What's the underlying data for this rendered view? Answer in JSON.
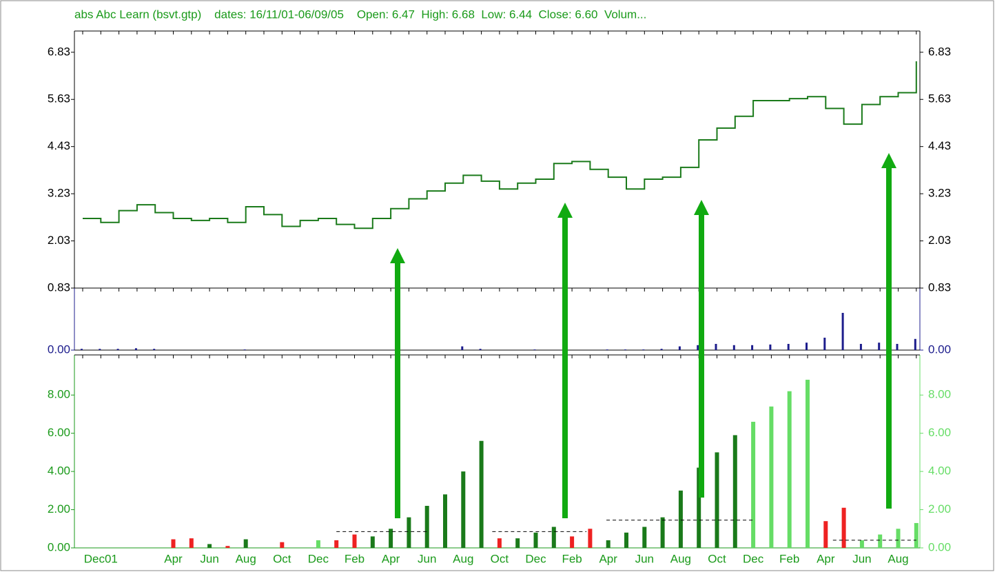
{
  "chart_data": [
    {
      "type": "line",
      "title": "abs Abc Learn (bsvt.gtp)    dates: 16/11/01-06/09/05    Open: 6.47  High: 6.68  Low: 6.44  Close: 6.60  Volum...",
      "color": "#1a7a1a",
      "values": [
        2.6,
        2.5,
        2.8,
        2.95,
        2.75,
        2.6,
        2.55,
        2.6,
        2.5,
        2.9,
        2.7,
        2.4,
        2.55,
        2.6,
        2.45,
        2.35,
        2.6,
        2.85,
        3.1,
        3.3,
        3.5,
        3.7,
        3.55,
        3.35,
        3.5,
        3.6,
        4.0,
        4.05,
        3.85,
        3.65,
        3.35,
        3.6,
        3.65,
        3.9,
        4.6,
        4.9,
        5.2,
        5.6,
        5.6,
        5.65,
        5.7,
        5.4,
        5.0,
        5.5,
        5.7,
        5.8,
        6.6
      ],
      "ylim": [
        0.83,
        7.37
      ],
      "yticks": [
        0.83,
        2.03,
        3.23,
        4.43,
        5.63,
        6.83
      ]
    },
    {
      "type": "bar",
      "color": "#1c1c8c",
      "values": [
        0.02,
        0.02,
        0.02,
        0.03,
        0.02,
        0,
        0,
        0,
        0,
        0.01,
        0,
        0,
        0,
        0,
        0,
        0,
        0,
        0,
        0,
        0,
        0,
        0.06,
        0.02,
        0,
        0,
        0.01,
        0,
        0,
        0,
        0.01,
        0.01,
        0.01,
        0.02,
        0.06,
        0.08,
        0.1,
        0.08,
        0.08,
        0.09,
        0.1,
        0.12,
        0.2,
        0.6,
        0.1,
        0.12,
        0.1,
        0.18
      ],
      "ylim": [
        0,
        1
      ],
      "yticks": [
        {
          "value": 0,
          "label": "0.00"
        }
      ]
    },
    {
      "type": "bar",
      "categories": [
        null,
        "Dec01",
        null,
        null,
        null,
        "Apr",
        null,
        "Jun",
        null,
        "Aug",
        null,
        "Oct",
        null,
        "Dec",
        null,
        "Feb",
        null,
        "Apr",
        null,
        "Jun",
        null,
        "Aug",
        null,
        "Oct",
        null,
        "Dec",
        null,
        "Feb",
        null,
        "Apr",
        null,
        "Jun",
        null,
        "Aug",
        null,
        "Oct",
        null,
        "Dec",
        null,
        "Feb",
        null,
        "Apr",
        null,
        "Jun",
        null,
        "Aug",
        null
      ],
      "values": [
        0,
        0,
        0,
        0,
        0,
        0.45,
        0.5,
        0.2,
        0.1,
        0.45,
        0,
        0.3,
        0,
        0.4,
        0.4,
        0.7,
        0.6,
        1.0,
        1.6,
        2.2,
        2.8,
        4.0,
        5.6,
        0.5,
        0.5,
        0.8,
        1.1,
        0.6,
        1.0,
        0.4,
        0.8,
        1.1,
        1.6,
        3.0,
        4.2,
        5.0,
        5.9,
        6.6,
        7.4,
        8.2,
        8.8,
        1.4,
        2.1,
        0.4,
        0.7,
        1.0,
        1.3
      ],
      "colors": [
        "#1a7a1a",
        "#1a7a1a",
        "#1a7a1a",
        "#1a7a1a",
        "#1a7a1a",
        "#ee2222",
        "#ee2222",
        "#1a7a1a",
        "#ee2222",
        "#1a7a1a",
        "#1a7a1a",
        "#ee2222",
        "#1a7a1a",
        "#66dd66",
        "#ee2222",
        "#ee2222",
        "#1a7a1a",
        "#1a7a1a",
        "#1a7a1a",
        "#1a7a1a",
        "#1a7a1a",
        "#1a7a1a",
        "#1a7a1a",
        "#ee2222",
        "#1a7a1a",
        "#1a7a1a",
        "#1a7a1a",
        "#ee2222",
        "#ee2222",
        "#1a7a1a",
        "#1a7a1a",
        "#1a7a1a",
        "#1a7a1a",
        "#1a7a1a",
        "#1a7a1a",
        "#1a7a1a",
        "#1a7a1a",
        "#66dd66",
        "#66dd66",
        "#66dd66",
        "#66dd66",
        "#ee2222",
        "#ee2222",
        "#66dd66",
        "#66dd66",
        "#66dd66",
        "#66dd66"
      ],
      "reference_lines": [
        {
          "value": 0.85,
          "x": [
            14,
            19
          ]
        },
        {
          "value": 0.85,
          "x": [
            22.6,
            27.8
          ]
        },
        {
          "value": 1.45,
          "x": [
            28.9,
            37
          ]
        },
        {
          "value": 0.4,
          "x": [
            41.4,
            46
          ]
        }
      ],
      "ylim": [
        0,
        10.1
      ],
      "yticks": [
        {
          "value": 0,
          "label": "0.00"
        },
        {
          "value": 2,
          "label": "2.00"
        },
        {
          "value": 4,
          "label": "4.00"
        },
        {
          "value": 6,
          "label": "6.00"
        },
        {
          "value": 8,
          "label": "8.00"
        }
      ]
    }
  ]
}
